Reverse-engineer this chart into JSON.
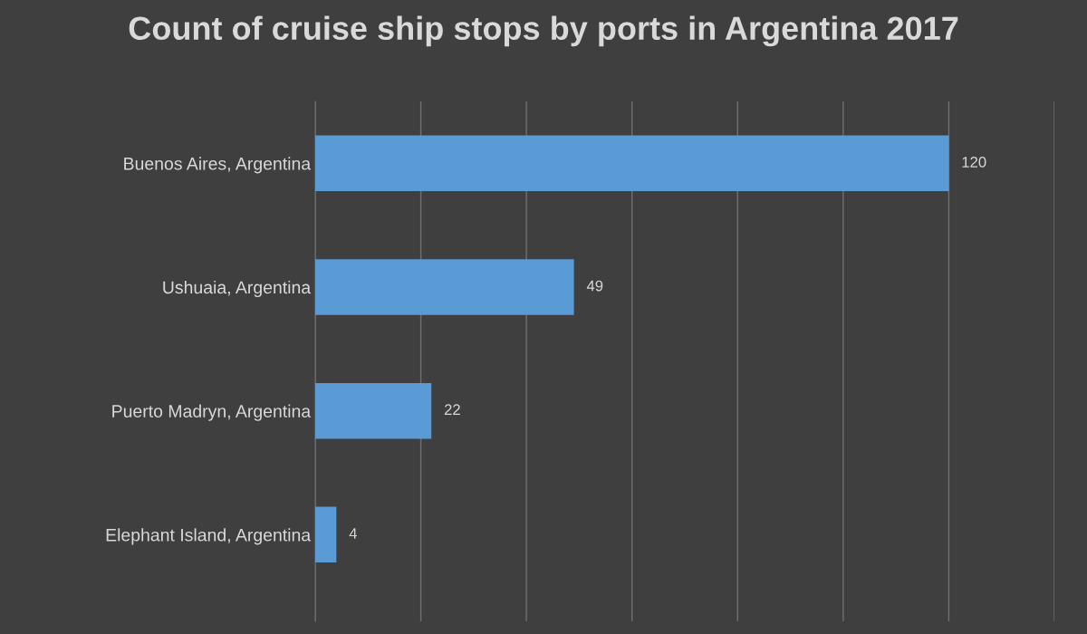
{
  "chart_data": {
    "type": "bar",
    "orientation": "horizontal",
    "title": "Count of cruise ship stops by ports in Argentina 2017",
    "categories": [
      "Buenos Aires, Argentina",
      "Ushuaia, Argentina",
      "Puerto Madryn, Argentina",
      "Elephant Island, Argentina"
    ],
    "values": [
      120,
      49,
      22,
      4
    ],
    "color": "#5b9bd5",
    "data_labels": true,
    "xlim": [
      0,
      140
    ],
    "xticks": [
      {
        "value": 0,
        "label": null
      },
      {
        "value": 20,
        "label": null
      },
      {
        "value": 40,
        "label": null
      },
      {
        "value": 60,
        "label": null
      },
      {
        "value": 80,
        "label": null
      },
      {
        "value": 100,
        "label": null
      },
      {
        "value": 120,
        "label": null
      },
      {
        "value": 140,
        "label": null
      }
    ],
    "grid": "x",
    "tick_labels": "y"
  }
}
